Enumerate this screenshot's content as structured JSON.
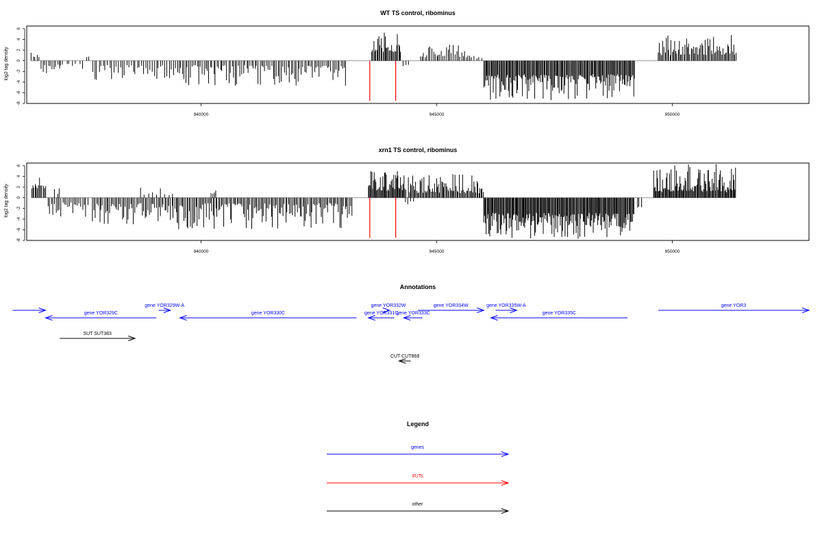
{
  "colors": {
    "gene": "#0000ff",
    "xut": "#ff0000",
    "other": "#000000",
    "bar": "#000000",
    "baseline": "#999999",
    "marker": "#ff0000"
  },
  "chart_data": [
    {
      "type": "bar",
      "title": "WT TS control, ribominus",
      "ylabel": "log2 tag density",
      "xlim": [
        936300,
        952900
      ],
      "ylim": [
        -8,
        6.5
      ],
      "yticks": [
        6,
        4,
        2,
        0,
        -2,
        -4,
        -6,
        -8
      ],
      "xticks": [
        940000,
        945000,
        950000
      ],
      "xtick_labels": [
        "940000",
        "945000",
        "950000"
      ],
      "markers": [
        943580,
        944130
      ],
      "marker_depth": -7.5,
      "segments": [
        {
          "start": 936400,
          "end": 936560,
          "sign": 1,
          "min": 0.5,
          "max": 2.0,
          "step": 40
        },
        {
          "start": 936600,
          "end": 937000,
          "sign": -1,
          "min": 0.6,
          "max": 2.6,
          "step": 40
        },
        {
          "start": 937000,
          "end": 937500,
          "sign": -1,
          "min": 0.4,
          "max": 1.6,
          "step": 70
        },
        {
          "start": 937580,
          "end": 937650,
          "sign": 1,
          "min": 0.5,
          "max": 0.9,
          "step": 50
        },
        {
          "start": 937700,
          "end": 939500,
          "sign": -1,
          "min": 0.8,
          "max": 3.4,
          "step": 45
        },
        {
          "start": 939500,
          "end": 943100,
          "sign": -1,
          "min": 0.8,
          "max": 4.6,
          "step": 35
        },
        {
          "start": 943620,
          "end": 944250,
          "sign": 1,
          "min": 1.5,
          "max": 5.2,
          "step": 22
        },
        {
          "start": 944300,
          "end": 944400,
          "sign": -1,
          "min": 0.5,
          "max": 1.5,
          "step": 50
        },
        {
          "start": 944650,
          "end": 945700,
          "sign": 1,
          "min": 0.6,
          "max": 2.8,
          "step": 35
        },
        {
          "start": 945700,
          "end": 945950,
          "sign": 1,
          "min": 0.3,
          "max": 1.2,
          "step": 50
        },
        {
          "start": 946000,
          "end": 949200,
          "sign": -1,
          "min": 2.5,
          "max": 7.2,
          "step": 20
        },
        {
          "start": 949700,
          "end": 951350,
          "sign": 1,
          "min": 1.0,
          "max": 4.8,
          "step": 25
        }
      ]
    },
    {
      "type": "bar",
      "title": "xrn1 TS control, ribominus",
      "ylabel": "log2 tag density",
      "xlim": [
        936300,
        952900
      ],
      "ylim": [
        -8,
        6.5
      ],
      "yticks": [
        6,
        4,
        2,
        0,
        -2,
        -4,
        -6,
        -8
      ],
      "xticks": [
        940000,
        945000,
        950000
      ],
      "xtick_labels": [
        "940000",
        "945000",
        "950000"
      ],
      "markers": [
        943580,
        944130
      ],
      "marker_depth": -7.5,
      "segments": [
        {
          "start": 936400,
          "end": 936700,
          "sign": 1,
          "min": 1.5,
          "max": 3.7,
          "step": 25
        },
        {
          "start": 936750,
          "end": 937600,
          "sign": -1,
          "min": 0.8,
          "max": 3.8,
          "step": 35
        },
        {
          "start": 936900,
          "end": 937000,
          "sign": 1,
          "min": 0.5,
          "max": 1.7,
          "step": 50
        },
        {
          "start": 937700,
          "end": 939500,
          "sign": -1,
          "min": 1.0,
          "max": 4.8,
          "step": 30
        },
        {
          "start": 938700,
          "end": 939500,
          "sign": 1,
          "min": 0.4,
          "max": 2.4,
          "step": 90
        },
        {
          "start": 939500,
          "end": 943200,
          "sign": -1,
          "min": 1.0,
          "max": 5.8,
          "step": 28
        },
        {
          "start": 940200,
          "end": 940350,
          "sign": 1,
          "min": 0.5,
          "max": 2.2,
          "step": 40
        },
        {
          "start": 943550,
          "end": 944350,
          "sign": 1,
          "min": 1.2,
          "max": 5.2,
          "step": 18
        },
        {
          "start": 944350,
          "end": 944500,
          "sign": -1,
          "min": 0.4,
          "max": 1.2,
          "step": 50
        },
        {
          "start": 944400,
          "end": 946000,
          "sign": 1,
          "min": 0.8,
          "max": 4.6,
          "step": 22
        },
        {
          "start": 946000,
          "end": 949200,
          "sign": -1,
          "min": 2.8,
          "max": 7.6,
          "step": 18
        },
        {
          "start": 949250,
          "end": 949350,
          "sign": -1,
          "min": 1.5,
          "max": 2.2,
          "step": 50
        },
        {
          "start": 949600,
          "end": 951350,
          "sign": 1,
          "min": 1.0,
          "max": 6.3,
          "step": 18
        }
      ]
    }
  ],
  "annotations": {
    "title": "Annotations",
    "features": [
      {
        "label": "",
        "type": "gene",
        "start": 936000,
        "end": 936700,
        "strand": "+",
        "row": 0
      },
      {
        "label": "gene YOR329C",
        "type": "gene",
        "start": 936700,
        "end": 939050,
        "strand": "-",
        "row": 1
      },
      {
        "label": "gene YOR329W-A",
        "type": "gene",
        "start": 939100,
        "end": 939350,
        "strand": "+",
        "row": 0
      },
      {
        "label": "gene YOR330C",
        "type": "gene",
        "start": 939550,
        "end": 943300,
        "strand": "-",
        "row": 1
      },
      {
        "label": "gene YOR331C",
        "type": "gene",
        "start": 943550,
        "end": 944100,
        "strand": "-",
        "row": 1
      },
      {
        "label": "gene YOR332W",
        "type": "gene",
        "start": 943950,
        "end": 944000,
        "strand": "+",
        "row": 0
      },
      {
        "label": "gene YOR333C",
        "type": "gene",
        "start": 944300,
        "end": 944700,
        "strand": "-",
        "row": 1
      },
      {
        "label": "gene YOR334W",
        "type": "gene",
        "start": 944600,
        "end": 946000,
        "strand": "+",
        "row": 0
      },
      {
        "label": "gene YOR335W-A",
        "type": "gene",
        "start": 946250,
        "end": 946700,
        "strand": "+",
        "row": 0
      },
      {
        "label": "gene YOR335C",
        "type": "gene",
        "start": 946150,
        "end": 949050,
        "strand": "-",
        "row": 1
      },
      {
        "label": "gene YOR3",
        "type": "gene",
        "start": 949700,
        "end": 952900,
        "strand": "+",
        "row": 0
      },
      {
        "label": "SUT SUT383",
        "type": "other",
        "start": 937000,
        "end": 938600,
        "strand": "+",
        "row": 3
      },
      {
        "label": "CUT CUT868",
        "type": "other",
        "start": 944200,
        "end": 944450,
        "strand": "-",
        "row": 5
      }
    ]
  },
  "legend": {
    "title": "Legend",
    "entries": [
      {
        "label": "genes",
        "type": "gene"
      },
      {
        "label": "XUTs",
        "type": "xut"
      },
      {
        "label": "other",
        "type": "other"
      }
    ]
  }
}
